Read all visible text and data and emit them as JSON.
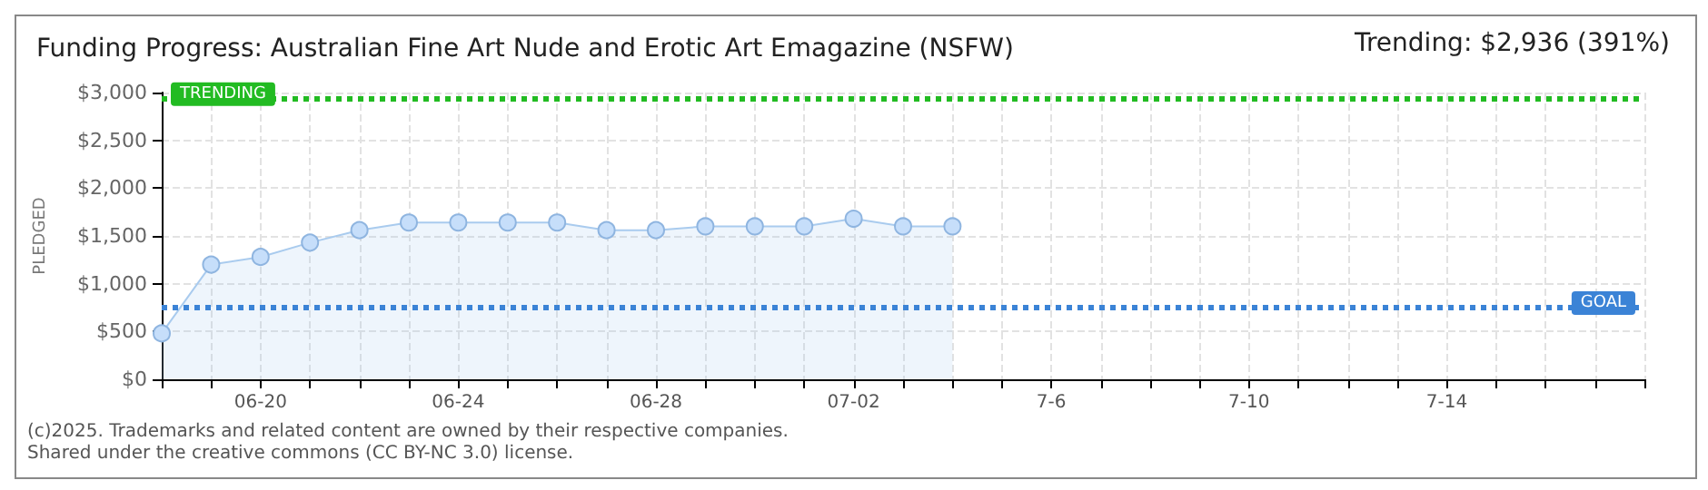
{
  "chart_data": {
    "type": "area",
    "title": "Funding Progress: Australian Fine Art Nude and Erotic Art Emagazine (NSFW)",
    "ylabel": "PLEDGED",
    "categories": [
      null,
      null,
      "06-20",
      null,
      null,
      null,
      "06-24",
      null,
      null,
      null,
      "06-28",
      null,
      null,
      null,
      "07-02",
      null,
      null,
      null,
      "7-6",
      null,
      null,
      null,
      "7-10",
      null,
      null,
      null,
      "7-14",
      null,
      null,
      null,
      null
    ],
    "series": [
      {
        "color": "#a9cbee",
        "values": [
          480,
          1200,
          1280,
          1430,
          1560,
          1640,
          1640,
          1640,
          1640,
          1560,
          1560,
          1600,
          1600,
          1600,
          1680,
          1600,
          1600,
          null,
          null,
          null,
          null,
          null,
          null,
          null,
          null,
          null,
          null,
          null,
          null,
          null,
          null
        ]
      }
    ],
    "ylim": [
      0,
      3000
    ],
    "yticks": [
      {
        "value": 0,
        "label": "$0"
      },
      {
        "value": 500,
        "label": "$500"
      },
      {
        "value": 1000,
        "label": "$1,000"
      },
      {
        "value": 1500,
        "label": "$1,500"
      },
      {
        "value": 2000,
        "label": "$2,000"
      },
      {
        "value": 2500,
        "label": "$2,500"
      },
      {
        "value": 3000,
        "label": "$3,000"
      }
    ],
    "ref_lines": [
      {
        "axis": "y",
        "value": 2936,
        "label": "TRENDING",
        "color": "#22bb22",
        "line_style": "dotted"
      },
      {
        "axis": "y",
        "value": 750,
        "label": "GOAL",
        "color": "#3b83d6",
        "line_style": "dotted"
      }
    ],
    "annotations": [
      "Trending: $2,936 (391%)",
      "(c)2025. Trademarks and related content are owned by their respective companies.",
      "Shared under the creative commons (CC BY-NC 3.0) license."
    ],
    "grid": true,
    "marker": "circle",
    "line_style": "solid"
  }
}
